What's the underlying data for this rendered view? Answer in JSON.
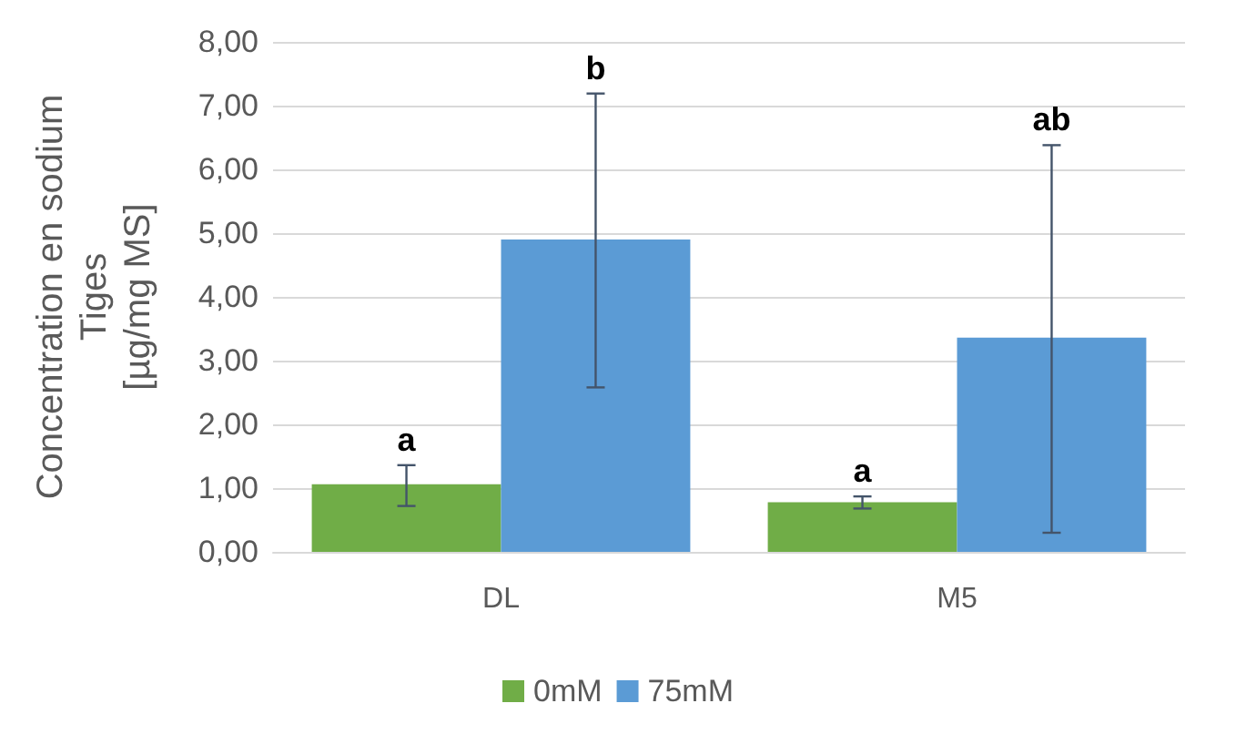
{
  "chart_data": {
    "type": "bar",
    "ylabel": "Concentration en sodium\nTiges\n[µg/mg MS]",
    "categories": [
      "DL",
      "M5"
    ],
    "series": [
      {
        "name": "0mM",
        "color": "#70ad47",
        "values": [
          1.06,
          0.78
        ],
        "errors": [
          [
            0.72,
            1.36
          ],
          [
            0.68,
            0.87
          ]
        ]
      },
      {
        "name": "75mM",
        "color": "#5b9bd5",
        "values": [
          4.9,
          3.36
        ],
        "errors": [
          [
            2.58,
            7.19
          ],
          [
            0.3,
            6.38
          ]
        ]
      }
    ],
    "ylim": [
      0,
      8
    ],
    "yticks": [
      {
        "value": 0,
        "label": "0,00"
      },
      {
        "value": 1,
        "label": "1,00"
      },
      {
        "value": 2,
        "label": "2,00"
      },
      {
        "value": 3,
        "label": "3,00"
      },
      {
        "value": 4,
        "label": "4,00"
      },
      {
        "value": 5,
        "label": "5,00"
      },
      {
        "value": 6,
        "label": "6,00"
      },
      {
        "value": 7,
        "label": "7,00"
      },
      {
        "value": 8,
        "label": "8,00"
      }
    ],
    "grid": "y",
    "legend": "bottom",
    "annotations": [
      "a",
      "b",
      "a",
      "ab"
    ]
  }
}
